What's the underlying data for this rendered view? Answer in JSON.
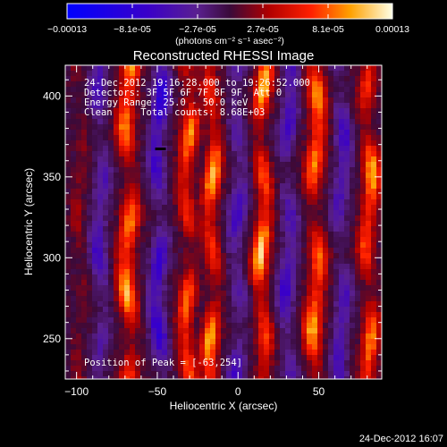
{
  "chart_data": {
    "type": "heatmap",
    "title": "Reconstructed RHESSI Image",
    "xlabel": "Heliocentric X (arcsec)",
    "ylabel": "Heliocentric Y (arcsec)",
    "xlim": [
      -107,
      89
    ],
    "ylim": [
      225,
      419
    ],
    "xticks": [
      -100,
      -50,
      0,
      50
    ],
    "yticks": [
      250,
      300,
      350,
      400
    ],
    "colorbar": {
      "ticks": [
        "-0.00013",
        "-8.1e-05",
        "-2.7e-05",
        "2.7e-05",
        "8.1e-05",
        "0.00013"
      ],
      "min": -0.00013,
      "max": 0.00013,
      "unit_label": "(photons cm⁻² s⁻¹ asec⁻²)"
    },
    "info": [
      "24-Dec-2012 19:16:28.000 to 19:26:52.000",
      "Detectors: 3F 5F 6F 7F 8F 9F, Att 0",
      "Energy Range: 25.0 - 50.0 keV",
      "Clean     Total counts: 8.68E+03"
    ],
    "peak_label": "Position of Peak = [-63,254]",
    "peak": [
      -63,
      254
    ],
    "marker": [
      -48,
      367
    ],
    "stripes": [
      {
        "x": -98,
        "a": 0.2,
        "w": 4.0
      },
      {
        "x": -85,
        "a": -0.5,
        "w": 5.0
      },
      {
        "x": -68,
        "a": 0.9,
        "w": 5.5
      },
      {
        "x": -49,
        "a": -0.7,
        "w": 5.0
      },
      {
        "x": -31,
        "a": 0.75,
        "w": 5.0
      },
      {
        "x": -16,
        "a": 0.85,
        "w": 5.0
      },
      {
        "x": 0,
        "a": -0.45,
        "w": 5.5
      },
      {
        "x": 15,
        "a": 0.95,
        "w": 5.0
      },
      {
        "x": 31,
        "a": -0.55,
        "w": 5.0
      },
      {
        "x": 48,
        "a": 0.85,
        "w": 5.5
      },
      {
        "x": 64,
        "a": -0.5,
        "w": 5.0
      },
      {
        "x": 81,
        "a": 0.85,
        "w": 5.0
      }
    ]
  },
  "footer_timestamp": "24-Dec-2012 16:07"
}
